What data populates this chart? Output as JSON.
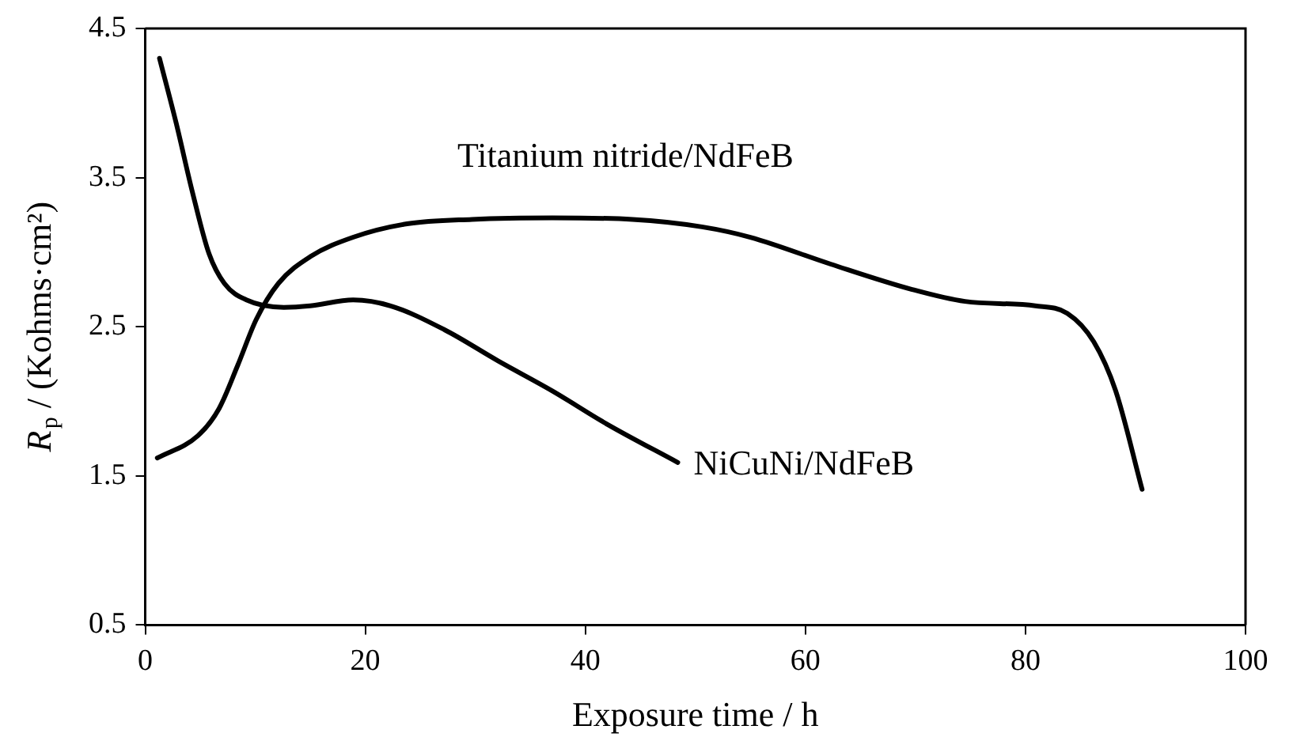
{
  "chart_data": {
    "type": "line",
    "xlabel": "Exposure time / h",
    "ylabel": "R$_{p}$ / (Kohms·cm²)",
    "xlim": [
      0,
      100
    ],
    "xticks": [
      0,
      20,
      40,
      60,
      80,
      100
    ],
    "ylim": [
      0.5,
      4.5
    ],
    "yticks": [
      0.5,
      1.5,
      2.5,
      3.5,
      4.5
    ],
    "grid": false,
    "legend": false,
    "marker": "none",
    "line_style": "solid",
    "series": [
      {
        "name": "NiCuNi/NdFeB",
        "color": "#000000",
        "x": [
          1.3,
          2.8,
          4.3,
          5.8,
          7.2,
          9.2,
          12.6,
          15.0,
          18.9,
          22.3,
          27.2,
          32.1,
          37.0,
          41.9,
          48.4
        ],
        "values": [
          4.3,
          3.87,
          3.4,
          2.99,
          2.79,
          2.68,
          2.63,
          2.64,
          2.68,
          2.64,
          2.48,
          2.27,
          2.07,
          1.85,
          1.59
        ]
      },
      {
        "name": "Titanium nitride/NdFeB",
        "color": "#000000",
        "x": [
          1.1,
          4.8,
          6.7,
          8.4,
          10.1,
          12.1,
          15.0,
          18.9,
          23.8,
          29.7,
          37.0,
          44.3,
          50.6,
          55.0,
          62.3,
          69.7,
          74.5,
          80.9,
          83.8,
          86.2,
          88.2,
          90.6
        ],
        "values": [
          1.62,
          1.77,
          1.95,
          2.24,
          2.55,
          2.79,
          2.97,
          3.1,
          3.19,
          3.22,
          3.23,
          3.22,
          3.17,
          3.1,
          2.92,
          2.75,
          2.67,
          2.64,
          2.59,
          2.4,
          2.07,
          1.41
        ]
      }
    ]
  }
}
